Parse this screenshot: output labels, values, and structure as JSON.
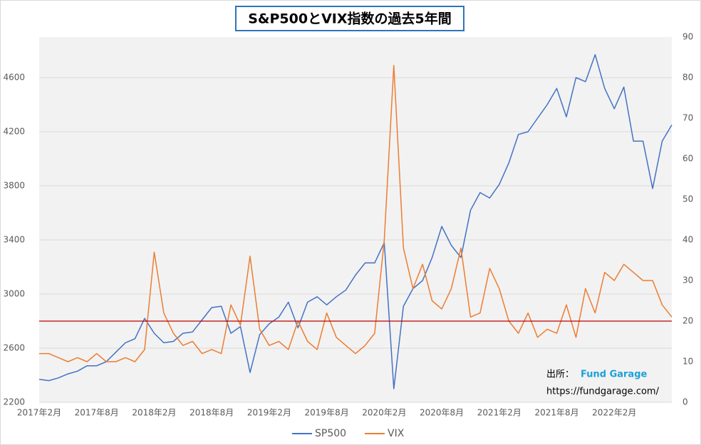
{
  "chart_data": {
    "type": "line",
    "title": "S&P500とVIX指数の過去5年間",
    "categories": [
      "2017年2月",
      null,
      null,
      null,
      null,
      null,
      "2017年8月",
      null,
      null,
      null,
      null,
      null,
      "2018年2月",
      null,
      null,
      null,
      null,
      null,
      "2018年8月",
      null,
      null,
      null,
      null,
      null,
      "2019年2月",
      null,
      null,
      null,
      null,
      null,
      "2019年8月",
      null,
      null,
      null,
      null,
      null,
      "2020年2月",
      null,
      null,
      null,
      null,
      null,
      "2020年8月",
      null,
      null,
      null,
      null,
      null,
      "2021年2月",
      null,
      null,
      null,
      null,
      null,
      "2021年8月",
      null,
      null,
      null,
      null,
      null,
      "2022年2月",
      null,
      null,
      null,
      null,
      null,
      null
    ],
    "series": [
      {
        "name": "SP500",
        "color": "#4472c4",
        "values": [
          2370,
          2360,
          2380,
          2410,
          2430,
          2470,
          2470,
          2500,
          2570,
          2640,
          2670,
          2820,
          2710,
          2640,
          2650,
          2710,
          2720,
          2810,
          2900,
          2910,
          2710,
          2760,
          2420,
          2700,
          2780,
          2830,
          2940,
          2750,
          2940,
          2980,
          2920,
          2980,
          3030,
          3140,
          3230,
          3230,
          3380,
          2300,
          2910,
          3040,
          3100,
          3270,
          3500,
          3360,
          3270,
          3620,
          3750,
          3710,
          3810,
          3970,
          4180,
          4200,
          4300,
          4400,
          4520,
          4310,
          4600,
          4570,
          4770,
          4520,
          4370,
          4530,
          4130,
          4130,
          3780,
          4130,
          4250
        ]
      },
      {
        "name": "VIX",
        "color": "#ed7d31",
        "axis": "y2",
        "values": [
          12,
          12,
          11,
          10,
          11,
          10,
          12,
          10,
          10,
          11,
          10,
          13,
          37,
          22,
          17,
          14,
          15,
          12,
          13,
          12,
          24,
          19,
          36,
          18,
          14,
          15,
          13,
          20,
          15,
          13,
          22,
          16,
          14,
          12,
          14,
          17,
          40,
          83,
          38,
          28,
          34,
          25,
          23,
          28,
          38,
          21,
          22,
          33,
          28,
          20,
          17,
          22,
          16,
          18,
          17,
          24,
          16,
          28,
          22,
          32,
          30,
          34,
          32,
          30,
          30,
          24,
          21
        ]
      }
    ],
    "ylim": [
      2200,
      4900
    ],
    "yticks": [
      2200,
      2600,
      3000,
      3400,
      3800,
      4200,
      4600
    ],
    "y2lim": [
      0,
      90
    ],
    "y2ticks": [
      0,
      10,
      20,
      30,
      40,
      50,
      60,
      70,
      80,
      90
    ],
    "grid": true,
    "reference_line": {
      "axis": "y2",
      "value": 20,
      "color": "#c00000"
    },
    "source_label": "出所：",
    "source_name": "Fund Garage",
    "source_url": "https://fundgarage.com/",
    "legend": "bottom"
  }
}
